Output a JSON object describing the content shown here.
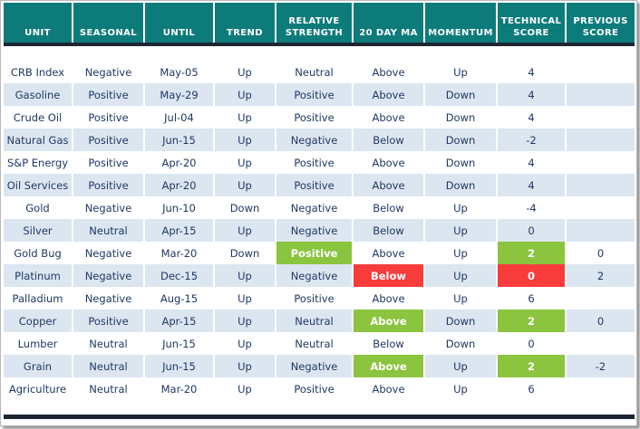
{
  "title": "commodity-technical-score-table",
  "colors": {
    "header_bg": "#0e7b7b",
    "header_text": "#ffffff",
    "rule_dark": "#1b2733",
    "row_alt_bg": "#dce6f1",
    "row_bg": "#ffffff",
    "body_text": "#1f3864",
    "highlight_green": "#8bc43f",
    "highlight_red": "#f83c3c",
    "highlight_text": "#ffffff"
  },
  "chart_data": {
    "type": "table",
    "title": "",
    "columns": [
      "UNIT",
      "SEASONAL",
      "UNTIL",
      "TREND",
      "RELATIVE STRENGTH",
      "20 DAY MA",
      "MOMENTUM",
      "TECHNICAL SCORE",
      "PREVIOUS SCORE"
    ],
    "rows": [
      {
        "values": [
          "CRB Index",
          "Negative",
          "May-05",
          "Up",
          "Neutral",
          "Above",
          "Up",
          "4",
          ""
        ],
        "highlights": {}
      },
      {
        "values": [
          "Gasoline",
          "Positive",
          "May-29",
          "Up",
          "Positive",
          "Above",
          "Down",
          "4",
          ""
        ],
        "highlights": {}
      },
      {
        "values": [
          "Crude Oil",
          "Positive",
          "Jul-04",
          "Up",
          "Positive",
          "Above",
          "Down",
          "4",
          ""
        ],
        "highlights": {}
      },
      {
        "values": [
          "Natural Gas",
          "Positive",
          "Jun-15",
          "Up",
          "Negative",
          "Below",
          "Down",
          "-2",
          ""
        ],
        "highlights": {}
      },
      {
        "values": [
          "S&P Energy",
          "Positive",
          "Apr-20",
          "Up",
          "Positive",
          "Above",
          "Down",
          "4",
          ""
        ],
        "highlights": {}
      },
      {
        "values": [
          "Oil Services",
          "Positive",
          "Apr-20",
          "Up",
          "Positive",
          "Above",
          "Down",
          "4",
          ""
        ],
        "highlights": {}
      },
      {
        "values": [
          "Gold",
          "Negative",
          "Jun-10",
          "Down",
          "Negative",
          "Below",
          "Up",
          "-4",
          ""
        ],
        "highlights": {}
      },
      {
        "values": [
          "Silver",
          "Neutral",
          "Apr-15",
          "Up",
          "Negative",
          "Below",
          "Up",
          "0",
          ""
        ],
        "highlights": {}
      },
      {
        "values": [
          "Gold Bug",
          "Negative",
          "Mar-20",
          "Down",
          "Positive",
          "Above",
          "Up",
          "2",
          "0"
        ],
        "highlights": {
          "4": "green",
          "7": "green"
        }
      },
      {
        "values": [
          "Platinum",
          "Negative",
          "Dec-15",
          "Up",
          "Negative",
          "Below",
          "Up",
          "0",
          "2"
        ],
        "highlights": {
          "5": "red",
          "7": "red"
        }
      },
      {
        "values": [
          "Palladium",
          "Negative",
          "Aug-15",
          "Up",
          "Positive",
          "Above",
          "Up",
          "6",
          ""
        ],
        "highlights": {}
      },
      {
        "values": [
          "Copper",
          "Positive",
          "Apr-15",
          "Up",
          "Neutral",
          "Above",
          "Down",
          "2",
          "0"
        ],
        "highlights": {
          "5": "green",
          "7": "green"
        }
      },
      {
        "values": [
          "Lumber",
          "Neutral",
          "Jun-15",
          "Up",
          "Neutral",
          "Below",
          "Down",
          "0",
          ""
        ],
        "highlights": {}
      },
      {
        "values": [
          "Grain",
          "Neutral",
          "Jun-15",
          "Up",
          "Negative",
          "Above",
          "Up",
          "2",
          "-2"
        ],
        "highlights": {
          "5": "green",
          "7": "green"
        }
      },
      {
        "values": [
          "Agriculture",
          "Neutral",
          "Mar-20",
          "Up",
          "Positive",
          "Above",
          "Up",
          "6",
          ""
        ],
        "highlights": {}
      }
    ]
  }
}
